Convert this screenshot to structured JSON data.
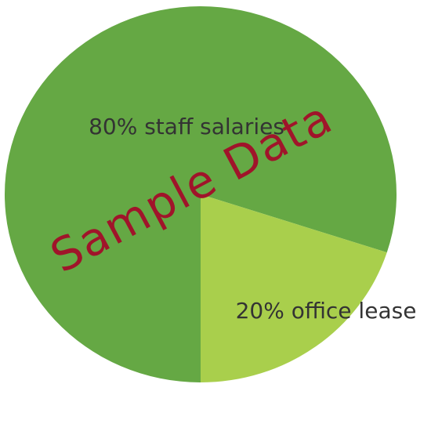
{
  "chart_data": {
    "type": "pie",
    "title": "",
    "slices": [
      {
        "label": "80% staff salaries",
        "value": 80,
        "color": "#65a844"
      },
      {
        "label": "20% office lease",
        "value": 20,
        "color": "#a9cf4c"
      }
    ],
    "start_angle_deg": 90,
    "direction": "counterclockwise",
    "legend": "none"
  },
  "watermark": {
    "text": "Sample Data",
    "color": "#a0142a"
  }
}
